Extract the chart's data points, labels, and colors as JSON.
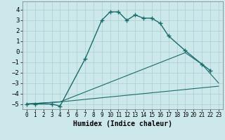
{
  "xlabel": "Humidex (Indice chaleur)",
  "background_color": "#cce8ea",
  "grid_color": "#aacfd2",
  "line_color": "#1a6b6b",
  "xlim": [
    -0.5,
    23.5
  ],
  "ylim": [
    -5.5,
    4.8
  ],
  "yticks": [
    -5,
    -4,
    -3,
    -2,
    -1,
    0,
    1,
    2,
    3,
    4
  ],
  "xticks": [
    0,
    1,
    2,
    3,
    4,
    5,
    6,
    7,
    8,
    9,
    10,
    11,
    12,
    13,
    14,
    15,
    16,
    17,
    18,
    19,
    20,
    21,
    22,
    23
  ],
  "line1_x": [
    0,
    1,
    3,
    4,
    7,
    9,
    10,
    11,
    12,
    13,
    14,
    15,
    16,
    17,
    19,
    21,
    22
  ],
  "line1_y": [
    -5.0,
    -5.0,
    -5.0,
    -5.2,
    -0.7,
    3.0,
    3.8,
    3.8,
    3.0,
    3.5,
    3.2,
    3.2,
    2.7,
    1.5,
    0.1,
    -1.2,
    -1.8
  ],
  "line2_x": [
    0,
    4,
    19,
    21,
    23
  ],
  "line2_y": [
    -5.0,
    -4.8,
    -0.1,
    -1.2,
    -3.0
  ],
  "line3_x": [
    0,
    4,
    23
  ],
  "line3_y": [
    -5.0,
    -4.8,
    -3.3
  ]
}
